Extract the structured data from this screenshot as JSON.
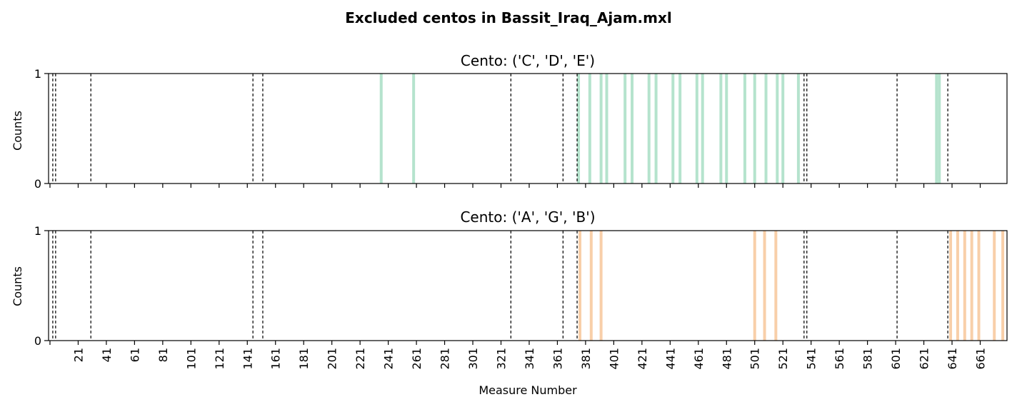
{
  "chart_data": {
    "type": "bar",
    "title": "Excluded centos in Bassit_Iraq_Ajam.mxl",
    "xlabel": "Measure Number",
    "xlim": [
      0,
      680
    ],
    "x_tick_labels": [
      "21",
      "41",
      "61",
      "81",
      "101",
      "121",
      "141",
      "161",
      "181",
      "201",
      "221",
      "241",
      "261",
      "281",
      "301",
      "321",
      "341",
      "361",
      "381",
      "401",
      "421",
      "441",
      "461",
      "481",
      "501",
      "521",
      "541",
      "561",
      "581",
      "601",
      "621",
      "641",
      "661"
    ],
    "section_lines": [
      3,
      5,
      30,
      145,
      152,
      328,
      365,
      375,
      536,
      538,
      602,
      638
    ],
    "panels": [
      {
        "title": "Cento: ('C', 'D', 'E')",
        "ylabel": "Counts",
        "ylim": [
          0,
          1
        ],
        "y_tick_labels": [
          "0",
          "1"
        ],
        "color": "#b5e3cd",
        "bar_x": [
          236,
          259,
          376,
          384,
          392,
          396,
          409,
          414,
          426,
          431,
          443,
          448,
          460,
          464,
          477,
          481,
          494,
          501,
          509,
          517,
          521,
          532,
          630,
          632
        ],
        "values": [
          1,
          1,
          1,
          1,
          1,
          1,
          1,
          1,
          1,
          1,
          1,
          1,
          1,
          1,
          1,
          1,
          1,
          1,
          1,
          1,
          1,
          1,
          1,
          1
        ]
      },
      {
        "title": "Cento: ('A', 'G', 'B')",
        "ylabel": "Counts",
        "ylim": [
          0,
          1
        ],
        "y_tick_labels": [
          "0",
          "1"
        ],
        "color": "#f8cfa9",
        "bar_x": [
          377,
          385,
          392,
          501,
          508,
          516,
          640,
          645,
          650,
          655,
          660,
          671,
          677
        ],
        "values": [
          1,
          1,
          1,
          1,
          1,
          1,
          1,
          1,
          1,
          1,
          1,
          1,
          1
        ]
      }
    ]
  }
}
